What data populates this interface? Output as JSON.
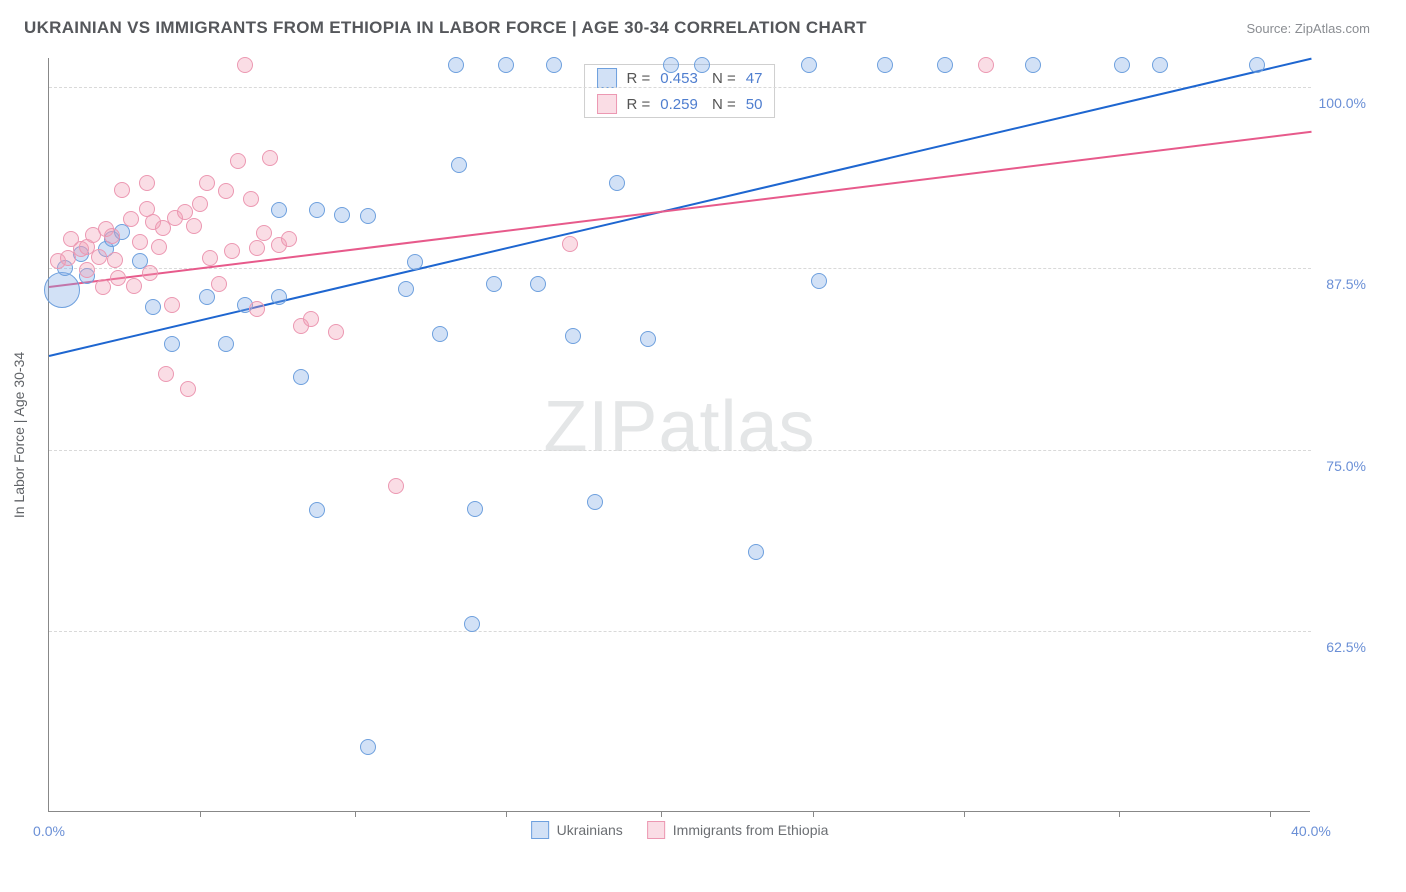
{
  "header": {
    "title": "UKRAINIAN VS IMMIGRANTS FROM ETHIOPIA IN LABOR FORCE | AGE 30-34 CORRELATION CHART",
    "source": "Source: ZipAtlas.com"
  },
  "watermark": {
    "pre": "ZIP",
    "post": "atlas"
  },
  "chart": {
    "type": "scatter",
    "xlim": [
      0.0,
      40.0
    ],
    "ylim": [
      50.0,
      102.0
    ],
    "y_ticks": [
      62.5,
      75.0,
      87.5,
      100.0
    ],
    "y_tick_labels": [
      "62.5%",
      "75.0%",
      "87.5%",
      "100.0%"
    ],
    "x_tick_positions": [
      4.8,
      9.7,
      14.5,
      19.4,
      24.2,
      29.0,
      33.9,
      38.7
    ],
    "x_label_min": "0.0%",
    "x_label_max": "40.0%",
    "y_axis_label": "In Labor Force | Age 30-34",
    "background_color": "#ffffff",
    "grid_color": "#d9d9d9",
    "grid_dash": true,
    "series": [
      {
        "name": "Ukrainians",
        "legend_label": "Ukrainians",
        "color_fill": "rgba(127,170,228,0.35)",
        "color_stroke": "#6ea0de",
        "trend_color": "#1e66d0",
        "stats": {
          "R": "0.453",
          "N": "47"
        },
        "trend": {
          "x0": 0.0,
          "y0": 81.5,
          "x1": 40.0,
          "y1": 102.0
        },
        "marker_radius": 8,
        "points": [
          {
            "x": 0.4,
            "y": 86.0,
            "r": 18
          },
          {
            "x": 0.5,
            "y": 87.5
          },
          {
            "x": 1.0,
            "y": 88.5
          },
          {
            "x": 1.2,
            "y": 87.0
          },
          {
            "x": 1.8,
            "y": 88.8
          },
          {
            "x": 2.0,
            "y": 89.5
          },
          {
            "x": 2.3,
            "y": 90.0
          },
          {
            "x": 2.9,
            "y": 88.0
          },
          {
            "x": 3.3,
            "y": 84.8
          },
          {
            "x": 3.9,
            "y": 82.3
          },
          {
            "x": 5.0,
            "y": 85.5
          },
          {
            "x": 5.6,
            "y": 82.3
          },
          {
            "x": 6.2,
            "y": 85.0
          },
          {
            "x": 7.3,
            "y": 91.5
          },
          {
            "x": 7.3,
            "y": 85.5
          },
          {
            "x": 8.0,
            "y": 80.0
          },
          {
            "x": 8.5,
            "y": 91.5
          },
          {
            "x": 8.5,
            "y": 70.8
          },
          {
            "x": 9.3,
            "y": 91.2
          },
          {
            "x": 10.1,
            "y": 91.1
          },
          {
            "x": 10.1,
            "y": 54.5
          },
          {
            "x": 11.3,
            "y": 86.1
          },
          {
            "x": 11.6,
            "y": 87.9
          },
          {
            "x": 12.4,
            "y": 83.0
          },
          {
            "x": 12.9,
            "y": 101.5
          },
          {
            "x": 13.0,
            "y": 94.6
          },
          {
            "x": 13.4,
            "y": 63.0
          },
          {
            "x": 13.5,
            "y": 70.9
          },
          {
            "x": 14.1,
            "y": 86.4
          },
          {
            "x": 14.5,
            "y": 101.5
          },
          {
            "x": 15.5,
            "y": 86.4
          },
          {
            "x": 16.0,
            "y": 101.5
          },
          {
            "x": 16.6,
            "y": 82.8
          },
          {
            "x": 17.3,
            "y": 71.4
          },
          {
            "x": 18.0,
            "y": 93.4
          },
          {
            "x": 19.0,
            "y": 82.6
          },
          {
            "x": 19.7,
            "y": 101.5
          },
          {
            "x": 20.7,
            "y": 101.5
          },
          {
            "x": 22.4,
            "y": 67.9
          },
          {
            "x": 24.1,
            "y": 101.5
          },
          {
            "x": 24.4,
            "y": 86.6
          },
          {
            "x": 26.5,
            "y": 101.5
          },
          {
            "x": 28.4,
            "y": 101.5
          },
          {
            "x": 31.2,
            "y": 101.5
          },
          {
            "x": 34.0,
            "y": 101.5
          },
          {
            "x": 35.2,
            "y": 101.5
          },
          {
            "x": 38.3,
            "y": 101.5
          }
        ]
      },
      {
        "name": "Immigrants from Ethiopia",
        "legend_label": "Immigrants from Ethiopia",
        "color_fill": "rgba(242,157,180,0.35)",
        "color_stroke": "#ec98b2",
        "trend_color": "#e75a8b",
        "stats": {
          "R": "0.259",
          "N": "50"
        },
        "trend": {
          "x0": 0.0,
          "y0": 86.3,
          "x1": 40.0,
          "y1": 97.0
        },
        "marker_radius": 8,
        "points": [
          {
            "x": 0.3,
            "y": 88.0
          },
          {
            "x": 0.6,
            "y": 88.2
          },
          {
            "x": 0.7,
            "y": 89.5
          },
          {
            "x": 1.0,
            "y": 88.8
          },
          {
            "x": 1.2,
            "y": 87.4
          },
          {
            "x": 1.2,
            "y": 89.0
          },
          {
            "x": 1.4,
            "y": 89.8
          },
          {
            "x": 1.6,
            "y": 88.3
          },
          {
            "x": 1.7,
            "y": 86.2
          },
          {
            "x": 1.8,
            "y": 90.2
          },
          {
            "x": 2.0,
            "y": 89.7
          },
          {
            "x": 2.1,
            "y": 88.1
          },
          {
            "x": 2.2,
            "y": 86.8
          },
          {
            "x": 2.3,
            "y": 92.9
          },
          {
            "x": 2.6,
            "y": 90.9
          },
          {
            "x": 2.7,
            "y": 86.3
          },
          {
            "x": 2.9,
            "y": 89.3
          },
          {
            "x": 3.1,
            "y": 91.6
          },
          {
            "x": 3.1,
            "y": 93.4
          },
          {
            "x": 3.2,
            "y": 87.2
          },
          {
            "x": 3.3,
            "y": 90.7
          },
          {
            "x": 3.5,
            "y": 89.0
          },
          {
            "x": 3.6,
            "y": 90.3
          },
          {
            "x": 3.7,
            "y": 80.2
          },
          {
            "x": 3.9,
            "y": 85.0
          },
          {
            "x": 4.0,
            "y": 91.0
          },
          {
            "x": 4.3,
            "y": 91.4
          },
          {
            "x": 4.4,
            "y": 79.2
          },
          {
            "x": 4.6,
            "y": 90.4
          },
          {
            "x": 4.8,
            "y": 91.9
          },
          {
            "x": 5.0,
            "y": 93.4
          },
          {
            "x": 5.1,
            "y": 88.2
          },
          {
            "x": 5.4,
            "y": 86.4
          },
          {
            "x": 5.6,
            "y": 92.8
          },
          {
            "x": 5.8,
            "y": 88.7
          },
          {
            "x": 6.0,
            "y": 94.9
          },
          {
            "x": 6.2,
            "y": 101.5
          },
          {
            "x": 6.4,
            "y": 92.3
          },
          {
            "x": 6.6,
            "y": 88.9
          },
          {
            "x": 6.6,
            "y": 84.7
          },
          {
            "x": 6.8,
            "y": 89.9
          },
          {
            "x": 7.0,
            "y": 95.1
          },
          {
            "x": 7.3,
            "y": 89.1
          },
          {
            "x": 7.6,
            "y": 89.5
          },
          {
            "x": 8.0,
            "y": 83.5
          },
          {
            "x": 8.3,
            "y": 84.0
          },
          {
            "x": 9.1,
            "y": 83.1
          },
          {
            "x": 11.0,
            "y": 72.5
          },
          {
            "x": 16.5,
            "y": 89.2
          },
          {
            "x": 29.7,
            "y": 101.5
          }
        ]
      }
    ]
  }
}
